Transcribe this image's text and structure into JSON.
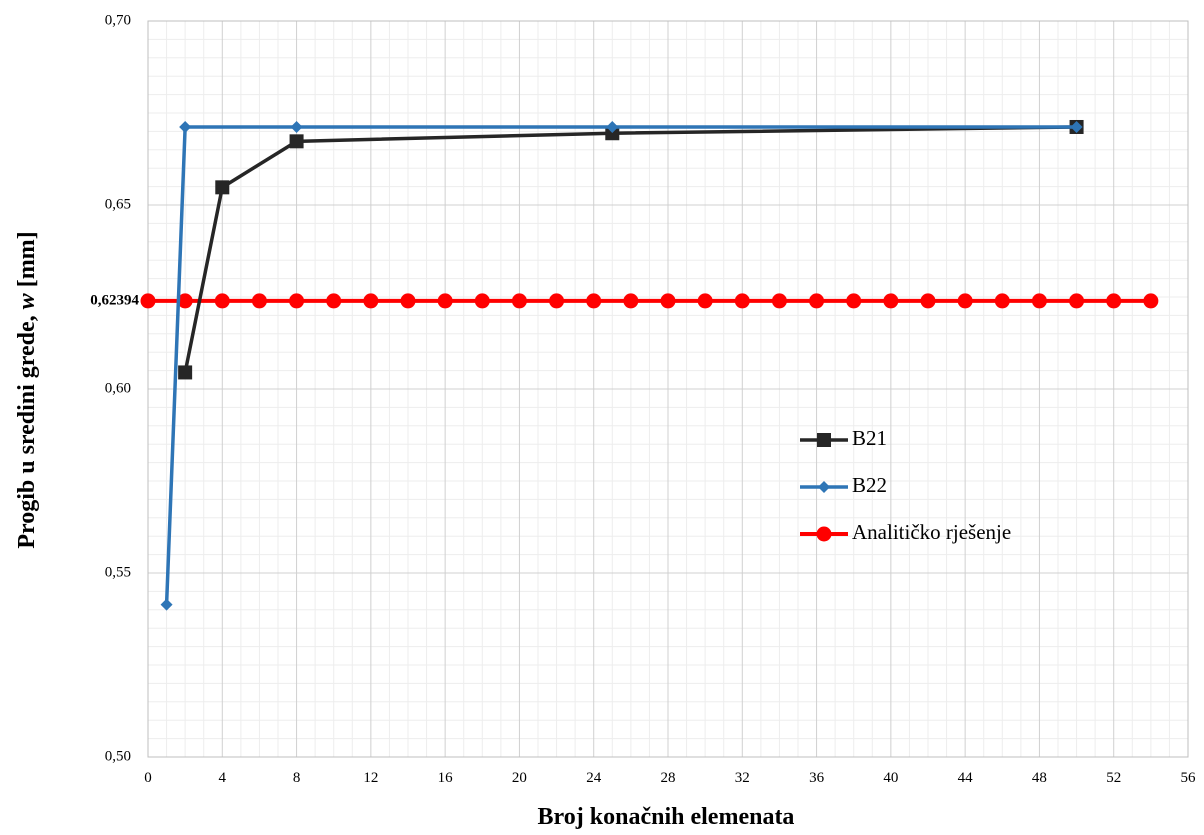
{
  "chart_data": {
    "type": "line",
    "xlabel": "Broj konačnih elemenata",
    "ylabel_main": "Progib u sredini grede, ",
    "ylabel_var": "w",
    "ylabel_unit": " [mm]",
    "xlim": [
      0,
      56
    ],
    "ylim": [
      0.5,
      0.7
    ],
    "x_ticks": [
      "0",
      "4",
      "8",
      "12",
      "16",
      "20",
      "24",
      "28",
      "32",
      "36",
      "40",
      "44",
      "48",
      "52",
      "56"
    ],
    "y_ticks": [
      "0,50",
      "0,55",
      "0,60",
      "0,65",
      "0,70"
    ],
    "reference_label": "0,62394",
    "grid": true,
    "legend_position": "center-right",
    "series": [
      {
        "name": "B21",
        "color": "#262626",
        "marker": "square",
        "x": [
          2,
          4,
          8,
          25,
          50
        ],
        "y": [
          0.6045,
          0.6548,
          0.6673,
          0.6695,
          0.6712
        ]
      },
      {
        "name": "B22",
        "color": "#2E75B6",
        "marker": "diamond",
        "x": [
          1,
          2,
          8,
          25,
          50
        ],
        "y": [
          0.5414,
          0.6712,
          0.6712,
          0.6712,
          0.6712
        ]
      },
      {
        "name": "Analitičko rješenje",
        "color": "#FF0000",
        "marker": "circle",
        "x": [
          0,
          2,
          4,
          6,
          8,
          10,
          12,
          14,
          16,
          18,
          20,
          22,
          24,
          26,
          28,
          30,
          32,
          34,
          36,
          38,
          40,
          42,
          44,
          46,
          48,
          50,
          52,
          54
        ],
        "y": [
          0.62394,
          0.62394,
          0.62394,
          0.62394,
          0.62394,
          0.62394,
          0.62394,
          0.62394,
          0.62394,
          0.62394,
          0.62394,
          0.62394,
          0.62394,
          0.62394,
          0.62394,
          0.62394,
          0.62394,
          0.62394,
          0.62394,
          0.62394,
          0.62394,
          0.62394,
          0.62394,
          0.62394,
          0.62394,
          0.62394,
          0.62394,
          0.62394
        ]
      }
    ]
  }
}
